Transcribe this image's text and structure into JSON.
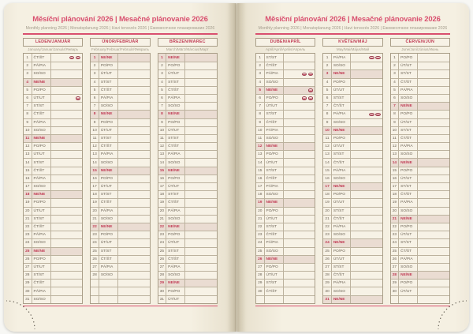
{
  "book": {
    "title": "Měsíční plánování 2026 | Mesačné plánovanie 2026",
    "subtitle": "Monthly planning 2026 | Monatsplanung 2026 | Havi tervezés 2026 | Ежемесячное планирование 2026"
  },
  "colors": {
    "accent_pink": "#d9506f",
    "holiday_red": "#c13c55",
    "sunday_row_bg": "#eadcd2",
    "page_cream": "#f5f0e2",
    "cell_bg": "#f7f2e6",
    "table_border": "#a99e88",
    "row_border": "#bcb29e",
    "day_text": "#6e6557",
    "subtitle_gray": "#a49d8d",
    "perforation_dot": "#6d675c"
  },
  "icons": {
    "holiday_marker": "holiday-flag-icon",
    "corner": "dotted-corner-perforation"
  },
  "pages": [
    {
      "side": "left",
      "months": [
        {
          "header": "LEDEN/JANUÁR",
          "subtitle": "January/Januar/Január/Январь",
          "filler_rows": 0,
          "rows": [
            [
              1,
              "ČT/ŠT",
              2
            ],
            [
              2,
              "PÁ/PIA",
              0
            ],
            [
              3,
              "SO/SO",
              0
            ],
            [
              4,
              "NE/NE",
              0
            ],
            [
              5,
              "PO/PO",
              0
            ],
            [
              6,
              "ÚT/UT",
              1
            ],
            [
              7,
              "ST/ST",
              0
            ],
            [
              8,
              "ČT/ŠT",
              0
            ],
            [
              9,
              "PÁ/PIA",
              0
            ],
            [
              10,
              "SO/SO",
              0
            ],
            [
              11,
              "NE/NE",
              0
            ],
            [
              12,
              "PO/PO",
              0
            ],
            [
              13,
              "ÚT/UT",
              0
            ],
            [
              14,
              "ST/ST",
              0
            ],
            [
              15,
              "ČT/ŠT",
              0
            ],
            [
              16,
              "PÁ/PIA",
              0
            ],
            [
              17,
              "SO/SO",
              0
            ],
            [
              18,
              "NE/NE",
              0
            ],
            [
              19,
              "PO/PO",
              0
            ],
            [
              20,
              "ÚT/UT",
              0
            ],
            [
              21,
              "ST/ST",
              0
            ],
            [
              22,
              "ČT/ŠT",
              0
            ],
            [
              23,
              "PÁ/PIA",
              0
            ],
            [
              24,
              "SO/SO",
              0
            ],
            [
              25,
              "NE/NE",
              0
            ],
            [
              26,
              "PO/PO",
              0
            ],
            [
              27,
              "ÚT/UT",
              0
            ],
            [
              28,
              "ST/ST",
              0
            ],
            [
              29,
              "ČT/ŠT",
              0
            ],
            [
              30,
              "PÁ/PIA",
              0
            ],
            [
              31,
              "SO/SO",
              0
            ]
          ]
        },
        {
          "header": "ÚNOR/FEBRUÁR",
          "subtitle": "February/Februar/Február/Февраль",
          "filler_rows": 3,
          "rows": [
            [
              1,
              "NE/NE",
              0
            ],
            [
              2,
              "PO/PO",
              0
            ],
            [
              3,
              "ÚT/UT",
              0
            ],
            [
              4,
              "ST/ST",
              0
            ],
            [
              5,
              "ČT/ŠT",
              0
            ],
            [
              6,
              "PÁ/PIA",
              0
            ],
            [
              7,
              "SO/SO",
              0
            ],
            [
              8,
              "NE/NE",
              0
            ],
            [
              9,
              "PO/PO",
              0
            ],
            [
              10,
              "ÚT/UT",
              0
            ],
            [
              11,
              "ST/ST",
              0
            ],
            [
              12,
              "ČT/ŠT",
              0
            ],
            [
              13,
              "PÁ/PIA",
              0
            ],
            [
              14,
              "SO/SO",
              0
            ],
            [
              15,
              "NE/NE",
              0
            ],
            [
              16,
              "PO/PO",
              0
            ],
            [
              17,
              "ÚT/UT",
              0
            ],
            [
              18,
              "ST/ST",
              0
            ],
            [
              19,
              "ČT/ŠT",
              0
            ],
            [
              20,
              "PÁ/PIA",
              0
            ],
            [
              21,
              "SO/SO",
              0
            ],
            [
              22,
              "NE/NE",
              0
            ],
            [
              23,
              "PO/PO",
              0
            ],
            [
              24,
              "ÚT/UT",
              0
            ],
            [
              25,
              "ST/ST",
              0
            ],
            [
              26,
              "ČT/ŠT",
              0
            ],
            [
              27,
              "PÁ/PIA",
              0
            ],
            [
              28,
              "SO/SO",
              0
            ]
          ]
        },
        {
          "header": "BŘEZEN/MAREC",
          "subtitle": "March/März/Március/Март",
          "filler_rows": 0,
          "rows": [
            [
              1,
              "NE/NE",
              0
            ],
            [
              2,
              "PO/PO",
              0
            ],
            [
              3,
              "ÚT/UT",
              0
            ],
            [
              4,
              "ST/ST",
              0
            ],
            [
              5,
              "ČT/ŠT",
              0
            ],
            [
              6,
              "PÁ/PIA",
              0
            ],
            [
              7,
              "SO/SO",
              0
            ],
            [
              8,
              "NE/NE",
              0
            ],
            [
              9,
              "PO/PO",
              0
            ],
            [
              10,
              "ÚT/UT",
              0
            ],
            [
              11,
              "ST/ST",
              0
            ],
            [
              12,
              "ČT/ŠT",
              0
            ],
            [
              13,
              "PÁ/PIA",
              0
            ],
            [
              14,
              "SO/SO",
              0
            ],
            [
              15,
              "NE/NE",
              0
            ],
            [
              16,
              "PO/PO",
              0
            ],
            [
              17,
              "ÚT/UT",
              0
            ],
            [
              18,
              "ST/ST",
              0
            ],
            [
              19,
              "ČT/ŠT",
              0
            ],
            [
              20,
              "PÁ/PIA",
              0
            ],
            [
              21,
              "SO/SO",
              0
            ],
            [
              22,
              "NE/NE",
              0
            ],
            [
              23,
              "PO/PO",
              0
            ],
            [
              24,
              "ÚT/UT",
              0
            ],
            [
              25,
              "ST/ST",
              0
            ],
            [
              26,
              "ČT/ŠT",
              0
            ],
            [
              27,
              "PÁ/PIA",
              0
            ],
            [
              28,
              "SO/SO",
              0
            ],
            [
              29,
              "NE/NE",
              0
            ],
            [
              30,
              "PO/PO",
              0
            ],
            [
              31,
              "ÚT/UT",
              0
            ]
          ]
        }
      ]
    },
    {
      "side": "right",
      "months": [
        {
          "header": "DUBEN/APRÍL",
          "subtitle": "April/April/Április/Апрель",
          "filler_rows": 1,
          "rows": [
            [
              1,
              "ST/ST",
              0
            ],
            [
              2,
              "ČT/ŠT",
              0
            ],
            [
              3,
              "PÁ/PIA",
              2
            ],
            [
              4,
              "SO/SO",
              0
            ],
            [
              5,
              "NE/NE",
              1
            ],
            [
              6,
              "PO/PO",
              2
            ],
            [
              7,
              "ÚT/UT",
              0
            ],
            [
              8,
              "ST/ST",
              0
            ],
            [
              9,
              "ČT/ŠT",
              0
            ],
            [
              10,
              "PÁ/PIA",
              0
            ],
            [
              11,
              "SO/SO",
              0
            ],
            [
              12,
              "NE/NE",
              0
            ],
            [
              13,
              "PO/PO",
              0
            ],
            [
              14,
              "ÚT/UT",
              0
            ],
            [
              15,
              "ST/ST",
              0
            ],
            [
              16,
              "ČT/ŠT",
              0
            ],
            [
              17,
              "PÁ/PIA",
              0
            ],
            [
              18,
              "SO/SO",
              0
            ],
            [
              19,
              "NE/NE",
              0
            ],
            [
              20,
              "PO/PO",
              0
            ],
            [
              21,
              "ÚT/UT",
              0
            ],
            [
              22,
              "ST/ST",
              0
            ],
            [
              23,
              "ČT/ŠT",
              0
            ],
            [
              24,
              "PÁ/PIA",
              0
            ],
            [
              25,
              "SO/SO",
              0
            ],
            [
              26,
              "NE/NE",
              0
            ],
            [
              27,
              "PO/PO",
              0
            ],
            [
              28,
              "ÚT/UT",
              0
            ],
            [
              29,
              "ST/ST",
              0
            ],
            [
              30,
              "ČT/ŠT",
              0
            ]
          ]
        },
        {
          "header": "KVĚTEN/MÁJ",
          "subtitle": "May/Mai/Május/Май",
          "filler_rows": 0,
          "rows": [
            [
              1,
              "PÁ/PIA",
              2
            ],
            [
              2,
              "SO/SO",
              0
            ],
            [
              3,
              "NE/NE",
              0
            ],
            [
              4,
              "PO/PO",
              0
            ],
            [
              5,
              "ÚT/UT",
              0
            ],
            [
              6,
              "ST/ST",
              0
            ],
            [
              7,
              "ČT/ŠT",
              0
            ],
            [
              8,
              "PÁ/PIA",
              2
            ],
            [
              9,
              "SO/SO",
              0
            ],
            [
              10,
              "NE/NE",
              0
            ],
            [
              11,
              "PO/PO",
              0
            ],
            [
              12,
              "ÚT/UT",
              0
            ],
            [
              13,
              "ST/ST",
              0
            ],
            [
              14,
              "ČT/ŠT",
              0
            ],
            [
              15,
              "PÁ/PIA",
              0
            ],
            [
              16,
              "SO/SO",
              0
            ],
            [
              17,
              "NE/NE",
              0
            ],
            [
              18,
              "PO/PO",
              0
            ],
            [
              19,
              "ÚT/UT",
              0
            ],
            [
              20,
              "ST/ST",
              0
            ],
            [
              21,
              "ČT/ŠT",
              0
            ],
            [
              22,
              "PÁ/PIA",
              0
            ],
            [
              23,
              "SO/SO",
              0
            ],
            [
              24,
              "NE/NE",
              0
            ],
            [
              25,
              "PO/PO",
              0
            ],
            [
              26,
              "ÚT/UT",
              0
            ],
            [
              27,
              "ST/ST",
              0
            ],
            [
              28,
              "ČT/ŠT",
              0
            ],
            [
              29,
              "PÁ/PIA",
              0
            ],
            [
              30,
              "SO/SO",
              0
            ],
            [
              31,
              "NE/NE",
              0
            ]
          ]
        },
        {
          "header": "ČERVEN/JÚN",
          "subtitle": "June/Juni/Június/Июнь",
          "filler_rows": 1,
          "rows": [
            [
              1,
              "PO/PO",
              0
            ],
            [
              2,
              "ÚT/UT",
              0
            ],
            [
              3,
              "ST/ST",
              0
            ],
            [
              4,
              "ČT/ŠT",
              0
            ],
            [
              5,
              "PÁ/PIA",
              0
            ],
            [
              6,
              "SO/SO",
              0
            ],
            [
              7,
              "NE/NE",
              0
            ],
            [
              8,
              "PO/PO",
              0
            ],
            [
              9,
              "ÚT/UT",
              0
            ],
            [
              10,
              "ST/ST",
              0
            ],
            [
              11,
              "ČT/ŠT",
              0
            ],
            [
              12,
              "PÁ/PIA",
              0
            ],
            [
              13,
              "SO/SO",
              0
            ],
            [
              14,
              "NE/NE",
              0
            ],
            [
              15,
              "PO/PO",
              0
            ],
            [
              16,
              "ÚT/UT",
              0
            ],
            [
              17,
              "ST/ST",
              0
            ],
            [
              18,
              "ČT/ŠT",
              0
            ],
            [
              19,
              "PÁ/PIA",
              0
            ],
            [
              20,
              "SO/SO",
              0
            ],
            [
              21,
              "NE/NE",
              0
            ],
            [
              22,
              "PO/PO",
              0
            ],
            [
              23,
              "ÚT/UT",
              0
            ],
            [
              24,
              "ST/ST",
              0
            ],
            [
              25,
              "ČT/ŠT",
              0
            ],
            [
              26,
              "PÁ/PIA",
              0
            ],
            [
              27,
              "SO/SO",
              0
            ],
            [
              28,
              "NE/NE",
              0
            ],
            [
              29,
              "PO/PO",
              0
            ],
            [
              30,
              "ÚT/UT",
              0
            ]
          ]
        }
      ]
    }
  ]
}
